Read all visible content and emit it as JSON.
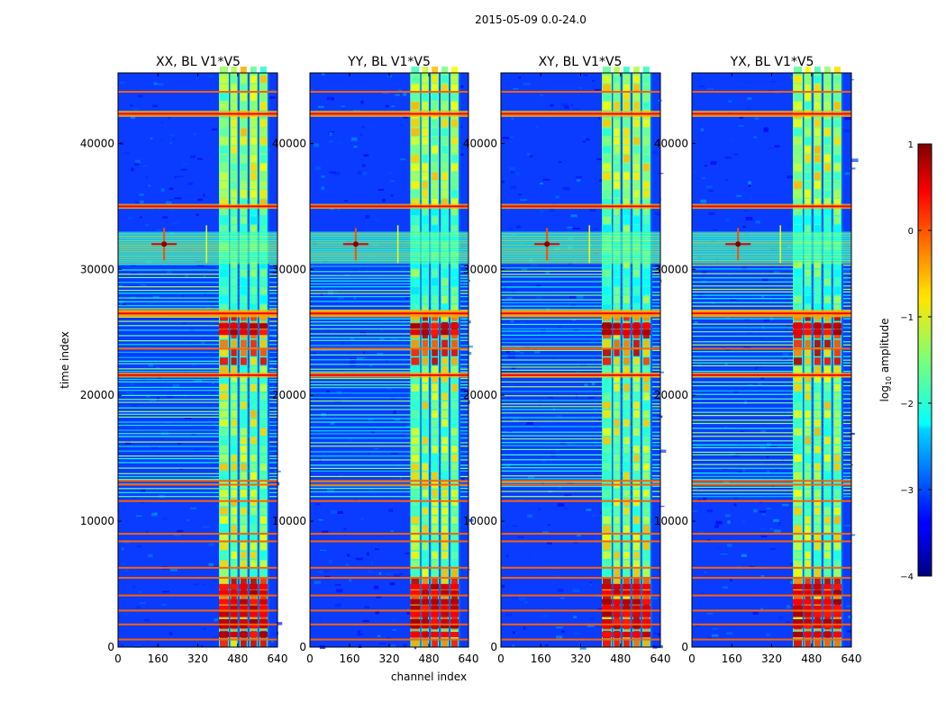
{
  "chart_data": {
    "type": "heatmap",
    "suptitle": "2015-05-09 0.0-24.0",
    "xlabel": "channel index",
    "ylabel": "time index",
    "xlim": [
      0,
      640
    ],
    "ylim": [
      0,
      45600
    ],
    "xticks": [
      0,
      160,
      320,
      480,
      640
    ],
    "xtick_labels": [
      "0",
      "160",
      "320",
      "480",
      "640"
    ],
    "yticks": [
      0,
      10000,
      20000,
      30000,
      40000
    ],
    "ytick_labels": [
      "0",
      "10000",
      "20000",
      "30000",
      "40000"
    ],
    "panels": [
      {
        "name": "xx",
        "title": "XX, BL V1*V5"
      },
      {
        "name": "yy",
        "title": "YY, BL V1*V5"
      },
      {
        "name": "xy",
        "title": "XY, BL V1*V5"
      },
      {
        "name": "yx",
        "title": "YX, BL V1*V5"
      }
    ],
    "colorbar": {
      "label_prefix": "log",
      "label_sub": "10",
      "label_suffix": " amplitude",
      "range": [
        -4,
        1
      ],
      "ticks": [
        1,
        0,
        -1,
        -2,
        -3,
        -4
      ],
      "tick_labels": [
        "1",
        "0",
        "−1",
        "−2",
        "−3",
        "−4"
      ],
      "colormap": "jet"
    },
    "features": {
      "rfi_channel_bands": [
        [
          405,
          445
        ],
        [
          450,
          480
        ],
        [
          488,
          520
        ],
        [
          528,
          560
        ],
        [
          567,
          600
        ]
      ],
      "hot_time_rows": [
        1000,
        1700,
        2000,
        2600,
        3100,
        3600,
        4300,
        4800,
        25000,
        25500
      ],
      "flagged_time_rows": [
        600,
        1800,
        2900,
        4100,
        5500,
        6300,
        8400,
        9000,
        11600,
        12900,
        13200,
        21600,
        23700,
        26300,
        26600,
        35000,
        42300,
        44100
      ],
      "interference_region": [
        30500,
        33000
      ],
      "spike_channel": 185,
      "spike_time": 32000
    }
  }
}
